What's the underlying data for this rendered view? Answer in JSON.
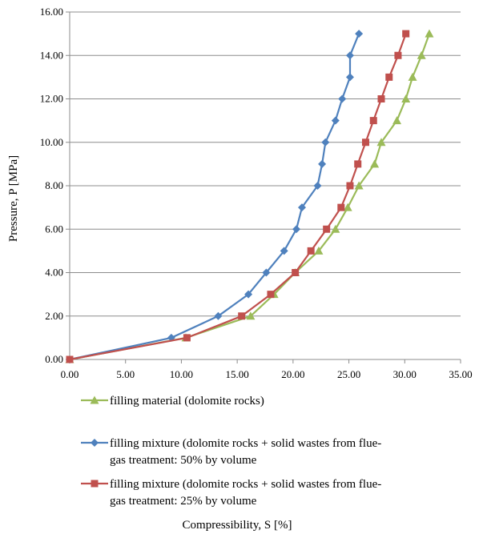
{
  "chart_data": {
    "type": "line",
    "xlabel": "Compressibility,  S [%]",
    "ylabel": "Pressure, P [MPa]",
    "xlim": [
      0,
      35
    ],
    "ylim": [
      0,
      16
    ],
    "xticks": [
      "0.00",
      "5.00",
      "10.00",
      "15.00",
      "20.00",
      "25.00",
      "30.00",
      "35.00"
    ],
    "yticks": [
      "0.00",
      "2.00",
      "4.00",
      "6.00",
      "8.00",
      "10.00",
      "12.00",
      "14.00",
      "16.00"
    ],
    "grid": "horizontal",
    "legend_position": "bottom",
    "series": [
      {
        "name": "filling material (dolomite rocks)",
        "name_lines": [
          "filling material (dolomite rocks)"
        ],
        "color": "#9BBB59",
        "marker": "triangle",
        "points": [
          [
            0,
            0
          ],
          [
            10.4,
            1
          ],
          [
            16.2,
            2
          ],
          [
            18.3,
            3
          ],
          [
            20.2,
            4
          ],
          [
            22.3,
            5
          ],
          [
            23.8,
            6
          ],
          [
            24.9,
            7
          ],
          [
            25.9,
            8
          ],
          [
            27.3,
            9
          ],
          [
            27.9,
            10
          ],
          [
            29.3,
            11
          ],
          [
            30.1,
            12
          ],
          [
            30.7,
            13
          ],
          [
            31.5,
            14
          ],
          [
            32.2,
            15
          ]
        ]
      },
      {
        "name": "filling mixture (dolomite rocks + solid wastes from flue-gas treatment: 50% by volume",
        "name_lines": [
          "filling mixture (dolomite rocks + solid wastes from flue-",
          "gas treatment: 50% by volume"
        ],
        "color": "#4F81BD",
        "marker": "diamond",
        "points": [
          [
            0,
            0
          ],
          [
            9.1,
            1
          ],
          [
            13.3,
            2
          ],
          [
            16.0,
            3
          ],
          [
            17.6,
            4
          ],
          [
            19.2,
            5
          ],
          [
            20.3,
            6
          ],
          [
            20.8,
            7
          ],
          [
            22.2,
            8
          ],
          [
            22.6,
            9
          ],
          [
            22.9,
            10
          ],
          [
            23.8,
            11
          ],
          [
            24.4,
            12
          ],
          [
            25.1,
            13
          ],
          [
            25.1,
            14
          ],
          [
            25.9,
            15
          ]
        ]
      },
      {
        "name": "filling mixture (dolomite rocks + solid wastes from flue-gas treatment: 25% by volume",
        "name_lines": [
          "filling mixture (dolomite rocks + solid wastes from flue-",
          "gas treatment: 25% by volume"
        ],
        "color": "#C0504D",
        "marker": "square",
        "points": [
          [
            0,
            0
          ],
          [
            10.5,
            1
          ],
          [
            15.4,
            2
          ],
          [
            18.0,
            3
          ],
          [
            20.2,
            4
          ],
          [
            21.6,
            5
          ],
          [
            23.0,
            6
          ],
          [
            24.3,
            7
          ],
          [
            25.1,
            8
          ],
          [
            25.8,
            9
          ],
          [
            26.5,
            10
          ],
          [
            27.2,
            11
          ],
          [
            27.9,
            12
          ],
          [
            28.6,
            13
          ],
          [
            29.4,
            14
          ],
          [
            30.1,
            15
          ]
        ]
      }
    ]
  }
}
